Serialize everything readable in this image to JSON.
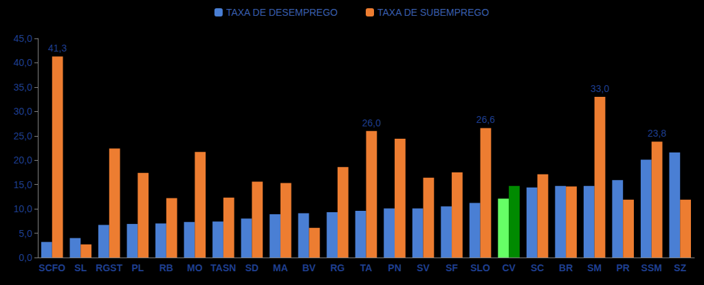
{
  "chart_data": {
    "type": "bar",
    "categories": [
      "SCFO",
      "SL",
      "RGST",
      "PL",
      "RB",
      "MO",
      "TASN",
      "SD",
      "MA",
      "BV",
      "RG",
      "TA",
      "PN",
      "SV",
      "SF",
      "SLO",
      "CV",
      "SC",
      "BR",
      "SM",
      "PR",
      "SSM",
      "SZ"
    ],
    "series": [
      {
        "name": "TAXA DE DESEMPREGO",
        "color": "#4a7fd4",
        "colors": [
          "#4a7fd4",
          "#4a7fd4",
          "#4a7fd4",
          "#4a7fd4",
          "#4a7fd4",
          "#4a7fd4",
          "#4a7fd4",
          "#4a7fd4",
          "#4a7fd4",
          "#4a7fd4",
          "#4a7fd4",
          "#4a7fd4",
          "#4a7fd4",
          "#4a7fd4",
          "#4a7fd4",
          "#4a7fd4",
          "#66ff66",
          "#4a7fd4",
          "#4a7fd4",
          "#4a7fd4",
          "#4a7fd4",
          "#4a7fd4",
          "#4a7fd4"
        ],
        "values": [
          3.2,
          4.0,
          6.7,
          6.9,
          7.0,
          7.3,
          7.4,
          8.0,
          8.9,
          9.1,
          9.3,
          9.6,
          10.1,
          10.1,
          10.5,
          11.2,
          12.1,
          14.4,
          14.7,
          14.7,
          15.9,
          20.1,
          21.6
        ]
      },
      {
        "name": "TAXA DE SUBEMPREGO",
        "color": "#ed7d31",
        "colors": [
          "#ed7d31",
          "#ed7d31",
          "#ed7d31",
          "#ed7d31",
          "#ed7d31",
          "#ed7d31",
          "#ed7d31",
          "#ed7d31",
          "#ed7d31",
          "#ed7d31",
          "#ed7d31",
          "#ed7d31",
          "#ed7d31",
          "#ed7d31",
          "#ed7d31",
          "#ed7d31",
          "#008a00",
          "#ed7d31",
          "#ed7d31",
          "#ed7d31",
          "#ed7d31",
          "#ed7d31",
          "#ed7d31"
        ],
        "values": [
          41.3,
          2.7,
          22.4,
          17.4,
          12.2,
          21.7,
          12.3,
          15.6,
          15.3,
          6.1,
          18.6,
          26.0,
          24.4,
          16.4,
          17.5,
          26.6,
          14.7,
          17.1,
          14.6,
          33.0,
          11.9,
          23.8,
          11.9
        ],
        "value_labels": [
          "41,3",
          null,
          null,
          null,
          null,
          null,
          null,
          null,
          null,
          null,
          null,
          "26,0",
          null,
          null,
          null,
          "26,6",
          null,
          null,
          null,
          "33,0",
          null,
          "23,8",
          null
        ]
      }
    ],
    "ylim": [
      0,
      45
    ],
    "yticks": [
      {
        "value": 0,
        "label": "0,0"
      },
      {
        "value": 5,
        "label": "5,0"
      },
      {
        "value": 10,
        "label": "10,0"
      },
      {
        "value": 15,
        "label": "15,0"
      },
      {
        "value": 20,
        "label": "20,0"
      },
      {
        "value": 25,
        "label": "25,0"
      },
      {
        "value": 30,
        "label": "30,0"
      },
      {
        "value": 35,
        "label": "35,0"
      },
      {
        "value": 40,
        "label": "40,0"
      },
      {
        "value": 45,
        "label": "45,0"
      }
    ],
    "grid": false,
    "legend": "top",
    "data_labels": true
  }
}
